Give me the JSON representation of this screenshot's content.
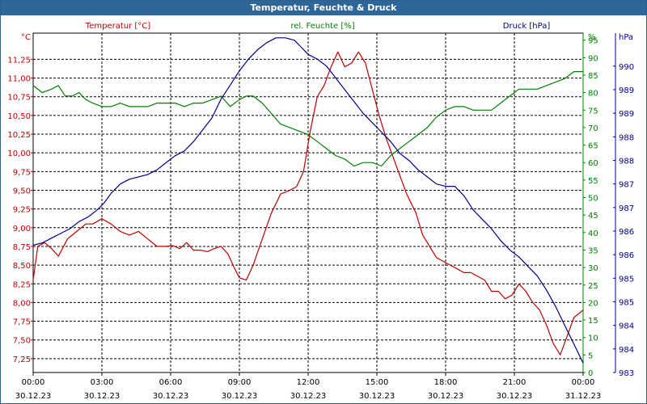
{
  "window": {
    "title": "Temperatur, Feuchte & Druck"
  },
  "chart_data": {
    "type": "line",
    "title": "Temperatur, Feuchte & Druck",
    "x": {
      "unit": "hours since 30.12.23 00:00",
      "range": [
        0,
        24
      ],
      "tick_labels": [
        {
          "time": "00:00",
          "date": "30.12.23"
        },
        {
          "time": "03:00",
          "date": "30.12.23"
        },
        {
          "time": "06:00",
          "date": "30.12.23"
        },
        {
          "time": "09:00",
          "date": "30.12.23"
        },
        {
          "time": "12:00",
          "date": "30.12.23"
        },
        {
          "time": "15:00",
          "date": "30.12.23"
        },
        {
          "time": "18:00",
          "date": "30.12.23"
        },
        {
          "time": "21:00",
          "date": "30.12.23"
        },
        {
          "time": "00:00",
          "date": "31.12.23"
        }
      ]
    },
    "axes": {
      "temperature": {
        "label": "Temperatur [°C]",
        "unit": "°C",
        "color": "#c00000",
        "range": [
          7.065,
          11.6
        ],
        "ticks": [
          "7,25",
          "7,50",
          "7,75",
          "8,00",
          "8,25",
          "8,50",
          "8,75",
          "9,00",
          "9,25",
          "9,50",
          "9,75",
          "10,00",
          "10,25",
          "10,50",
          "10,75",
          "11,00",
          "11,25"
        ]
      },
      "humidity": {
        "label": "rel. Feuchte [%]",
        "unit": "%",
        "color": "#008000",
        "range": [
          0,
          97
        ],
        "ticks": [
          "0",
          "5",
          "10",
          "15",
          "20",
          "25",
          "30",
          "35",
          "40",
          "45",
          "50",
          "55",
          "60",
          "65",
          "70",
          "75",
          "80",
          "85",
          "90",
          "95"
        ]
      },
      "pressure": {
        "label": "Druck [hPa]",
        "unit": "hPa",
        "color": "#00008b",
        "range": [
          983,
          990.2
        ],
        "ticks": [
          "983",
          "984",
          "984",
          "985",
          "985",
          "986",
          "986",
          "987",
          "987",
          "988",
          "988",
          "989",
          "989",
          "990"
        ]
      }
    },
    "series": [
      {
        "name": "Temperatur",
        "axis": "temperature",
        "color": "#c00000",
        "x": [
          0,
          0.2,
          0.5,
          0.8,
          1.1,
          1.5,
          1.9,
          2.3,
          2.6,
          3.0,
          3.4,
          3.8,
          4.2,
          4.6,
          5.0,
          5.4,
          5.8,
          6.1,
          6.4,
          6.7,
          7.0,
          7.3,
          7.6,
          7.9,
          8.2,
          8.5,
          8.8,
          9.0,
          9.3,
          9.6,
          10.0,
          10.4,
          10.8,
          11.2,
          11.5,
          11.8,
          12.1,
          12.4,
          12.7,
          13.0,
          13.3,
          13.6,
          13.9,
          14.2,
          14.5,
          14.8,
          15.1,
          15.4,
          15.7,
          16.0,
          16.3,
          16.7,
          17.0,
          17.3,
          17.6,
          17.9,
          18.2,
          18.5,
          18.8,
          19.1,
          19.4,
          19.7,
          20.0,
          20.3,
          20.6,
          20.9,
          21.2,
          21.5,
          21.8,
          22.1,
          22.4,
          22.7,
          23.0,
          23.3,
          23.6,
          24.0
        ],
        "y": [
          8.3,
          8.75,
          8.8,
          8.72,
          8.62,
          8.85,
          8.95,
          9.05,
          9.05,
          9.12,
          9.05,
          8.95,
          8.9,
          8.95,
          8.85,
          8.75,
          8.75,
          8.76,
          8.72,
          8.8,
          8.7,
          8.7,
          8.68,
          8.72,
          8.75,
          8.65,
          8.45,
          8.33,
          8.3,
          8.5,
          8.85,
          9.2,
          9.45,
          9.5,
          9.55,
          9.75,
          10.3,
          10.75,
          10.9,
          11.15,
          11.35,
          11.15,
          11.2,
          11.35,
          11.2,
          10.85,
          10.5,
          10.2,
          9.95,
          9.7,
          9.45,
          9.2,
          8.9,
          8.75,
          8.6,
          8.55,
          8.5,
          8.45,
          8.4,
          8.4,
          8.35,
          8.3,
          8.15,
          8.15,
          8.05,
          8.1,
          8.25,
          8.15,
          8.0,
          7.9,
          7.7,
          7.45,
          7.3,
          7.55,
          7.8,
          7.9
        ]
      },
      {
        "name": "rel. Feuchte",
        "axis": "humidity",
        "color": "#008000",
        "x": [
          0,
          0.4,
          0.8,
          1.1,
          1.4,
          1.7,
          2.0,
          2.3,
          2.6,
          3.0,
          3.4,
          3.8,
          4.2,
          4.6,
          5.0,
          5.4,
          5.8,
          6.2,
          6.6,
          7.0,
          7.4,
          7.8,
          8.2,
          8.6,
          9.0,
          9.3,
          9.6,
          10.0,
          10.4,
          10.8,
          11.2,
          11.6,
          12.0,
          12.4,
          12.8,
          13.2,
          13.6,
          14.0,
          14.4,
          14.8,
          15.2,
          15.6,
          16.0,
          16.4,
          16.8,
          17.2,
          17.6,
          18.0,
          18.4,
          18.8,
          19.2,
          19.6,
          20.0,
          20.4,
          20.8,
          21.2,
          21.6,
          22.0,
          22.4,
          22.8,
          23.2,
          23.6,
          24.0
        ],
        "y": [
          82,
          80,
          81,
          82,
          79,
          79,
          80,
          78,
          77,
          76,
          76,
          77,
          76,
          76,
          76,
          77,
          77,
          77,
          76,
          77,
          77,
          78,
          79,
          76,
          78,
          79,
          79,
          77,
          74,
          71,
          70,
          69,
          68,
          66,
          64,
          62,
          61,
          59,
          60,
          60,
          59,
          62,
          64,
          66,
          68,
          70,
          73,
          75,
          76,
          76,
          75,
          75,
          75,
          77,
          79,
          81,
          81,
          81,
          82,
          83,
          84,
          86,
          86
        ]
      },
      {
        "name": "Druck",
        "axis": "pressure",
        "color": "#00008b",
        "x": [
          0,
          0.4,
          0.8,
          1.2,
          1.6,
          2.0,
          2.4,
          2.8,
          3.1,
          3.4,
          3.8,
          4.2,
          4.6,
          5.0,
          5.4,
          5.8,
          6.2,
          6.6,
          7.0,
          7.4,
          7.8,
          8.2,
          8.6,
          9.0,
          9.4,
          9.8,
          10.2,
          10.6,
          11.0,
          11.4,
          11.7,
          12.0,
          12.4,
          12.8,
          13.2,
          13.6,
          14.0,
          14.4,
          14.8,
          15.2,
          15.6,
          16.0,
          16.4,
          16.8,
          17.2,
          17.6,
          18.0,
          18.4,
          18.8,
          19.2,
          19.6,
          20.0,
          20.4,
          20.8,
          21.2,
          21.6,
          22.0,
          22.4,
          22.8,
          23.2,
          23.6,
          24.0
        ],
        "y": [
          985.7,
          985.75,
          985.85,
          985.95,
          986.05,
          986.2,
          986.3,
          986.45,
          986.6,
          986.8,
          987.0,
          987.1,
          987.15,
          987.2,
          987.3,
          987.45,
          987.6,
          987.7,
          987.9,
          988.15,
          988.4,
          988.8,
          989.1,
          989.4,
          989.65,
          989.85,
          990.0,
          990.1,
          990.1,
          990.05,
          989.9,
          989.75,
          989.65,
          989.5,
          989.25,
          989.0,
          988.75,
          988.5,
          988.3,
          988.1,
          987.9,
          987.65,
          987.5,
          987.3,
          987.15,
          987.0,
          986.95,
          986.95,
          986.75,
          986.45,
          986.25,
          986.05,
          985.8,
          985.6,
          985.45,
          985.25,
          985.05,
          984.75,
          984.4,
          984.0,
          983.6,
          983.2
        ]
      }
    ]
  }
}
